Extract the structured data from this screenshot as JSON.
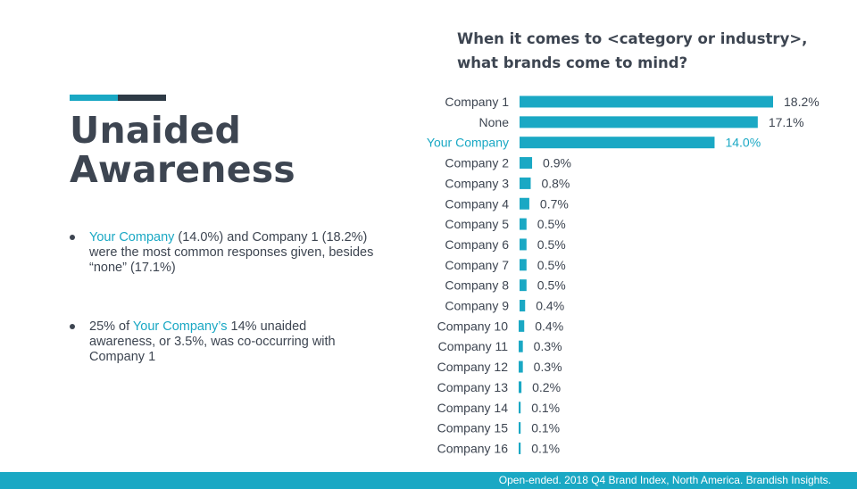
{
  "slide": {
    "title_line1": "Unaided",
    "title_line2": "Awareness",
    "bullet1": {
      "hl": "Your Company",
      "text": " (14.0%) and Company 1 (18.2%) were the most common responses given, besides “none” (17.1%)"
    },
    "bullet2": {
      "pre": "25% of ",
      "hl": "Your Company’s",
      "post": " 14% unaided awareness, or 3.5%, was co-occurring with Company 1"
    },
    "footer": "Open-ended. 2018 Q4 Brand Index, North America. Brandish Insights."
  },
  "colors": {
    "accent": "#1aa8c4",
    "dark": "#2e3a46",
    "text": "#3d4551"
  },
  "chart_data": {
    "type": "bar",
    "orientation": "horizontal",
    "title_line1": "When it comes to <category or industry>,",
    "title_line2": "what brands come to mind?",
    "categories": [
      "Company 1",
      "None",
      "Your Company",
      "Company 2",
      "Company 3",
      "Company 4",
      "Company 5",
      "Company 6",
      "Company 7",
      "Company 8",
      "Company 9",
      "Company 10",
      "Company 11",
      "Company 12",
      "Company 13",
      "Company 14",
      "Company 15",
      "Company 16"
    ],
    "values": [
      18.2,
      17.1,
      14.0,
      0.9,
      0.8,
      0.7,
      0.5,
      0.5,
      0.5,
      0.5,
      0.4,
      0.4,
      0.3,
      0.3,
      0.2,
      0.1,
      0.1,
      0.1
    ],
    "value_labels": [
      "18.2%",
      "17.1%",
      "14.0%",
      "0.9%",
      "0.8%",
      "0.7%",
      "0.5%",
      "0.5%",
      "0.5%",
      "0.5%",
      "0.4%",
      "0.4%",
      "0.3%",
      "0.3%",
      "0.2%",
      "0.1%",
      "0.1%",
      "0.1%"
    ],
    "highlight_category": "Your Company",
    "xlim": [
      0,
      18.2
    ],
    "grid": false,
    "legend": "none"
  }
}
